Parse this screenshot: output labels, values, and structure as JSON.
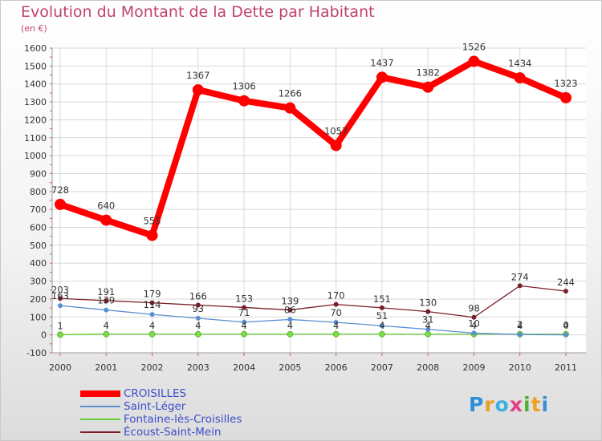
{
  "header": {
    "title": "Evolution du Montant de la Dette par Habitant",
    "subtitle": "(en €)"
  },
  "logo": {
    "letters": [
      "P",
      "r",
      "o",
      "x",
      "i",
      "t",
      "i"
    ]
  },
  "colors": {
    "title": "#c0426a",
    "axis_text": "#333333",
    "grid": "#d8d8d8",
    "tick": "#e05050"
  },
  "chart_data": {
    "type": "line",
    "title": "Evolution du Montant de la Dette par Habitant",
    "subtitle": "(en €)",
    "xlabel": "",
    "ylabel": "",
    "categories": [
      "2000",
      "2001",
      "2002",
      "2003",
      "2004",
      "2005",
      "2006",
      "2007",
      "2008",
      "2009",
      "2010",
      "2011"
    ],
    "ylim": [
      -100,
      1600
    ],
    "yticks": [
      -100,
      0,
      100,
      200,
      300,
      400,
      500,
      600,
      700,
      800,
      900,
      1000,
      1100,
      1200,
      1300,
      1400,
      1500,
      1600
    ],
    "grid": true,
    "legend_placement": "bottom-left",
    "series": [
      {
        "name": "CROISILLES",
        "values": [
          728,
          640,
          555,
          1367,
          1306,
          1266,
          1057,
          1437,
          1382,
          1526,
          1434,
          1323
        ],
        "labels": [
          "728",
          "640",
          "555",
          "1367",
          "1306",
          "1266",
          "1057",
          "1437",
          "1382",
          "1526",
          "1434",
          "1323"
        ],
        "color": "#ff0000",
        "legend_color": "#3b4ecb"
      },
      {
        "name": "Saint-Léger",
        "values": [
          163,
          139,
          114,
          93,
          71,
          86,
          70,
          51,
          31,
          10,
          2,
          0
        ],
        "labels": [
          "163",
          "139",
          "114",
          "93",
          "71",
          "86",
          "70",
          "51",
          "31",
          "10",
          "2",
          "0"
        ],
        "color": "#5b8fd0",
        "legend_color": "#3b4ecb"
      },
      {
        "name": "Fontaine-lès-Croisilles",
        "values": [
          1,
          4,
          4,
          4,
          4,
          4,
          4,
          4,
          4,
          4,
          4,
          4
        ],
        "labels": [
          "1",
          "4",
          "4",
          "4",
          "4",
          "4",
          "4",
          "4",
          "4",
          "4",
          "4",
          "4"
        ],
        "color": "#66cc33",
        "legend_color": "#3b4ecb"
      },
      {
        "name": "Écoust-Saint-Mein",
        "values": [
          203,
          191,
          179,
          166,
          153,
          139,
          170,
          151,
          130,
          98,
          274,
          244
        ],
        "labels": [
          "203",
          "191",
          "179",
          "166",
          "153",
          "139",
          "170",
          "151",
          "130",
          "98",
          "274",
          "244"
        ],
        "color": "#7a1f2a",
        "legend_color": "#3b4ecb"
      }
    ]
  }
}
